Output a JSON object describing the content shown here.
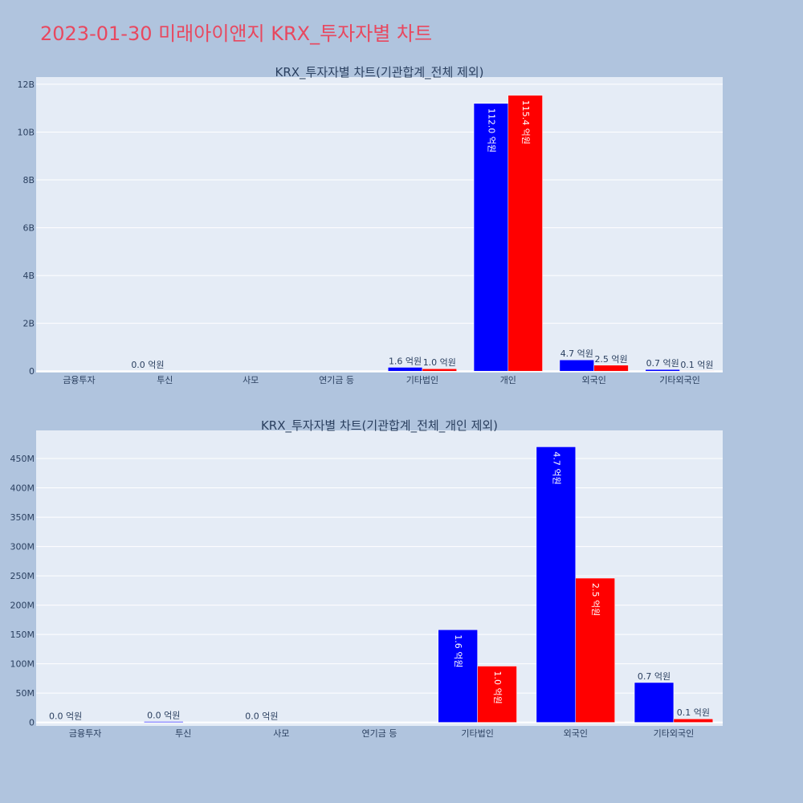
{
  "page": {
    "title": "2023-01-30 미래아이앤지 KRX_투자자별 차트"
  },
  "colors": {
    "buy": "#0000ff",
    "sell": "#ff0000",
    "title": "#e8485f",
    "background": "#b0c4de",
    "plot_bg": "#e5ecf6"
  },
  "chart_data": [
    {
      "type": "bar",
      "title": "KRX_투자자별 차트(기관합계_전체 제외)",
      "categories": [
        "금융투자",
        "투신",
        "사모",
        "연기금 등",
        "기타법인",
        "개인",
        "외국인",
        "기타외국인"
      ],
      "series": [
        {
          "values": [
            0,
            2000000,
            0,
            0,
            160000000,
            11200000000,
            470000000,
            70000000
          ],
          "labels": [
            "",
            "0.0 억원",
            "",
            "",
            "1.6 억원",
            "112.0 억원",
            "4.7 억원",
            "0.7 억원"
          ]
        },
        {
          "values": [
            0,
            0,
            0,
            0,
            100000000,
            11540000000,
            250000000,
            10000000
          ],
          "labels": [
            "",
            "",
            "",
            "",
            "1.0 억원",
            "115.4 억원",
            "2.5 억원",
            "0.1 억원"
          ]
        }
      ],
      "ylim": [
        -60000000,
        12300000000
      ],
      "yticks": [
        0,
        2000000000,
        4000000000,
        6000000000,
        8000000000,
        10000000000,
        12000000000
      ],
      "ytick_labels": [
        "0",
        "2B",
        "4B",
        "6B",
        "8B",
        "10B",
        "12B"
      ],
      "grid": true
    },
    {
      "type": "bar",
      "title": "KRX_투자자별 차트(기관합계_전체_개인 제외)",
      "categories": [
        "금융투자",
        "투신",
        "사모",
        "연기금 등",
        "기타법인",
        "외국인",
        "기타외국인"
      ],
      "series": [
        {
          "values": [
            0,
            1500000,
            0,
            0,
            158000000,
            470000000,
            68000000
          ],
          "labels": [
            "0.0 억원",
            "0.0 억원",
            "0.0 억원",
            "",
            "1.6 억원",
            "4.7 억원",
            "0.7 억원"
          ]
        },
        {
          "values": [
            0,
            0,
            0,
            0,
            96000000,
            246000000,
            6000000
          ],
          "labels": [
            "",
            "",
            "",
            "",
            "1.0 억원",
            "2.5 억원",
            "0.1 억원"
          ]
        }
      ],
      "ylim": [
        -6000000,
        498000000
      ],
      "yticks": [
        0,
        50000000,
        100000000,
        150000000,
        200000000,
        250000000,
        300000000,
        350000000,
        400000000,
        450000000
      ],
      "ytick_labels": [
        "0",
        "50M",
        "100M",
        "150M",
        "200M",
        "250M",
        "300M",
        "350M",
        "400M",
        "450M"
      ],
      "grid": true
    }
  ]
}
